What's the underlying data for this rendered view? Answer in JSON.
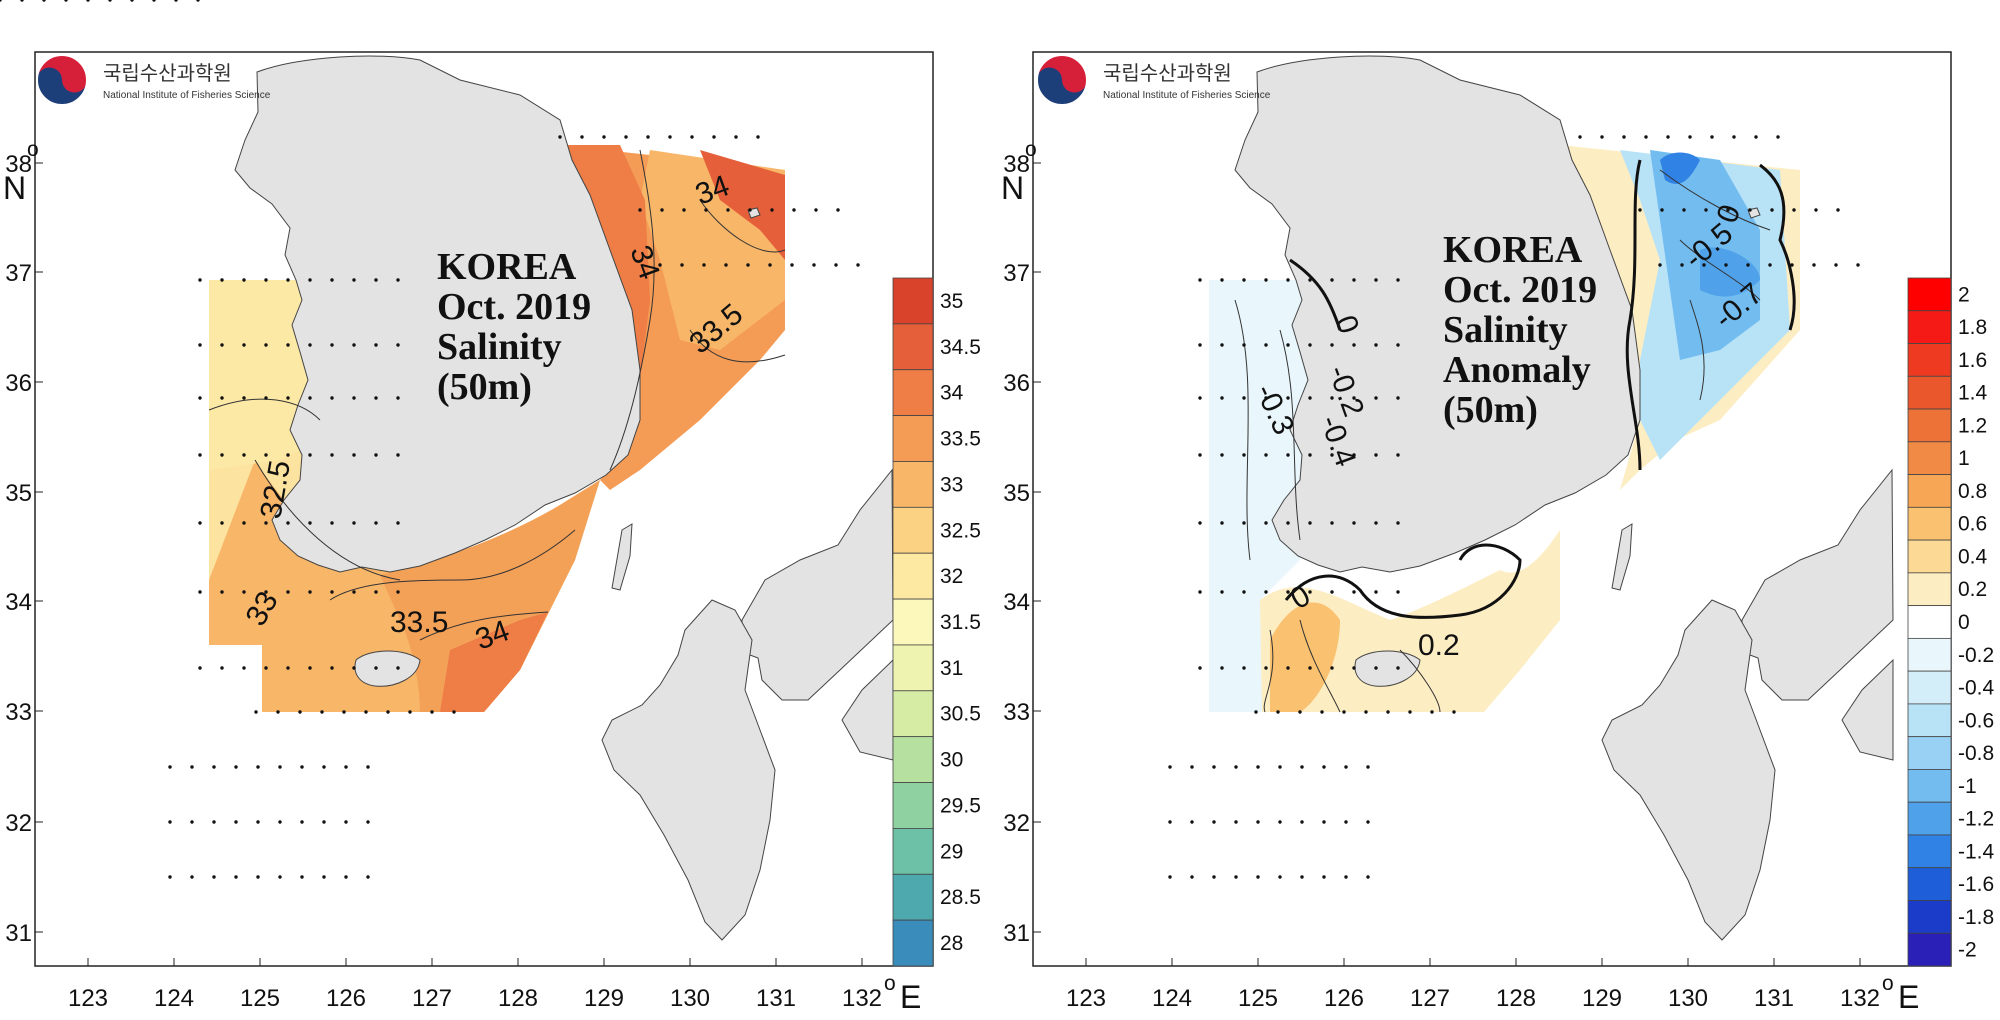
{
  "logo": {
    "korean": "국립수산과학원",
    "english": "National Institute of Fisheries Science"
  },
  "x_ticks": [
    "123",
    "124",
    "125",
    "126",
    "127",
    "128",
    "129",
    "130",
    "131",
    "132"
  ],
  "x_unit": "E",
  "y_ticks": [
    "38",
    "37",
    "36",
    "35",
    "34",
    "33",
    "32",
    "31"
  ],
  "y_unit": "N",
  "degree_symbol": "o",
  "panels": [
    {
      "id": "salinity",
      "title_lines": [
        "KOREA",
        "Oct. 2019",
        "Salinity",
        "(50m)"
      ],
      "contour_labels": [
        "34",
        "34",
        "33.5",
        "32.5",
        "33",
        "33.5",
        "34"
      ],
      "colorbar": {
        "labels": [
          "35",
          "34.5",
          "34",
          "33.5",
          "33",
          "32.5",
          "32",
          "31.5",
          "31",
          "30.5",
          "30",
          "29.5",
          "29",
          "28.5",
          "28"
        ],
        "colors": [
          "#d9432c",
          "#e5603a",
          "#ee7e46",
          "#f49b55",
          "#f8b669",
          "#fbd184",
          "#fde9a2",
          "#fcf8bc",
          "#eef4b0",
          "#d6eca5",
          "#b6e0a0",
          "#8fd1a1",
          "#6cc1a6",
          "#4da9ad",
          "#3a8cba"
        ]
      }
    },
    {
      "id": "anomaly",
      "title_lines": [
        "KOREA",
        "Oct. 2019",
        "Salinity",
        "Anomaly",
        "(50m)"
      ],
      "contour_labels": [
        "0",
        "-0.5",
        "-0.7",
        "0",
        "-0.2",
        "-0.3",
        "-0.4",
        "0",
        "0.2"
      ],
      "colorbar": {
        "labels": [
          "2",
          "1.8",
          "1.6",
          "1.4",
          "1.2",
          "1",
          "0.8",
          "0.6",
          "0.4",
          "0.2",
          "0",
          "-0.2",
          "-0.4",
          "-0.6",
          "-0.8",
          "-1",
          "-1.2",
          "-1.4",
          "-1.6",
          "-1.8",
          "-2"
        ],
        "colors": [
          "#ff0000",
          "#f61a16",
          "#ef3a22",
          "#ea572c",
          "#ec7238",
          "#f18a45",
          "#f6a655",
          "#f9c170",
          "#fcda95",
          "#fdedc2",
          "#ffffff",
          "#e9f6fb",
          "#d4eef9",
          "#b8e2f6",
          "#98d1f3",
          "#73bcef",
          "#4fa2ea",
          "#3082e4",
          "#1f5ed9",
          "#1a3cc9",
          "#2a1fb6"
        ]
      }
    }
  ]
}
